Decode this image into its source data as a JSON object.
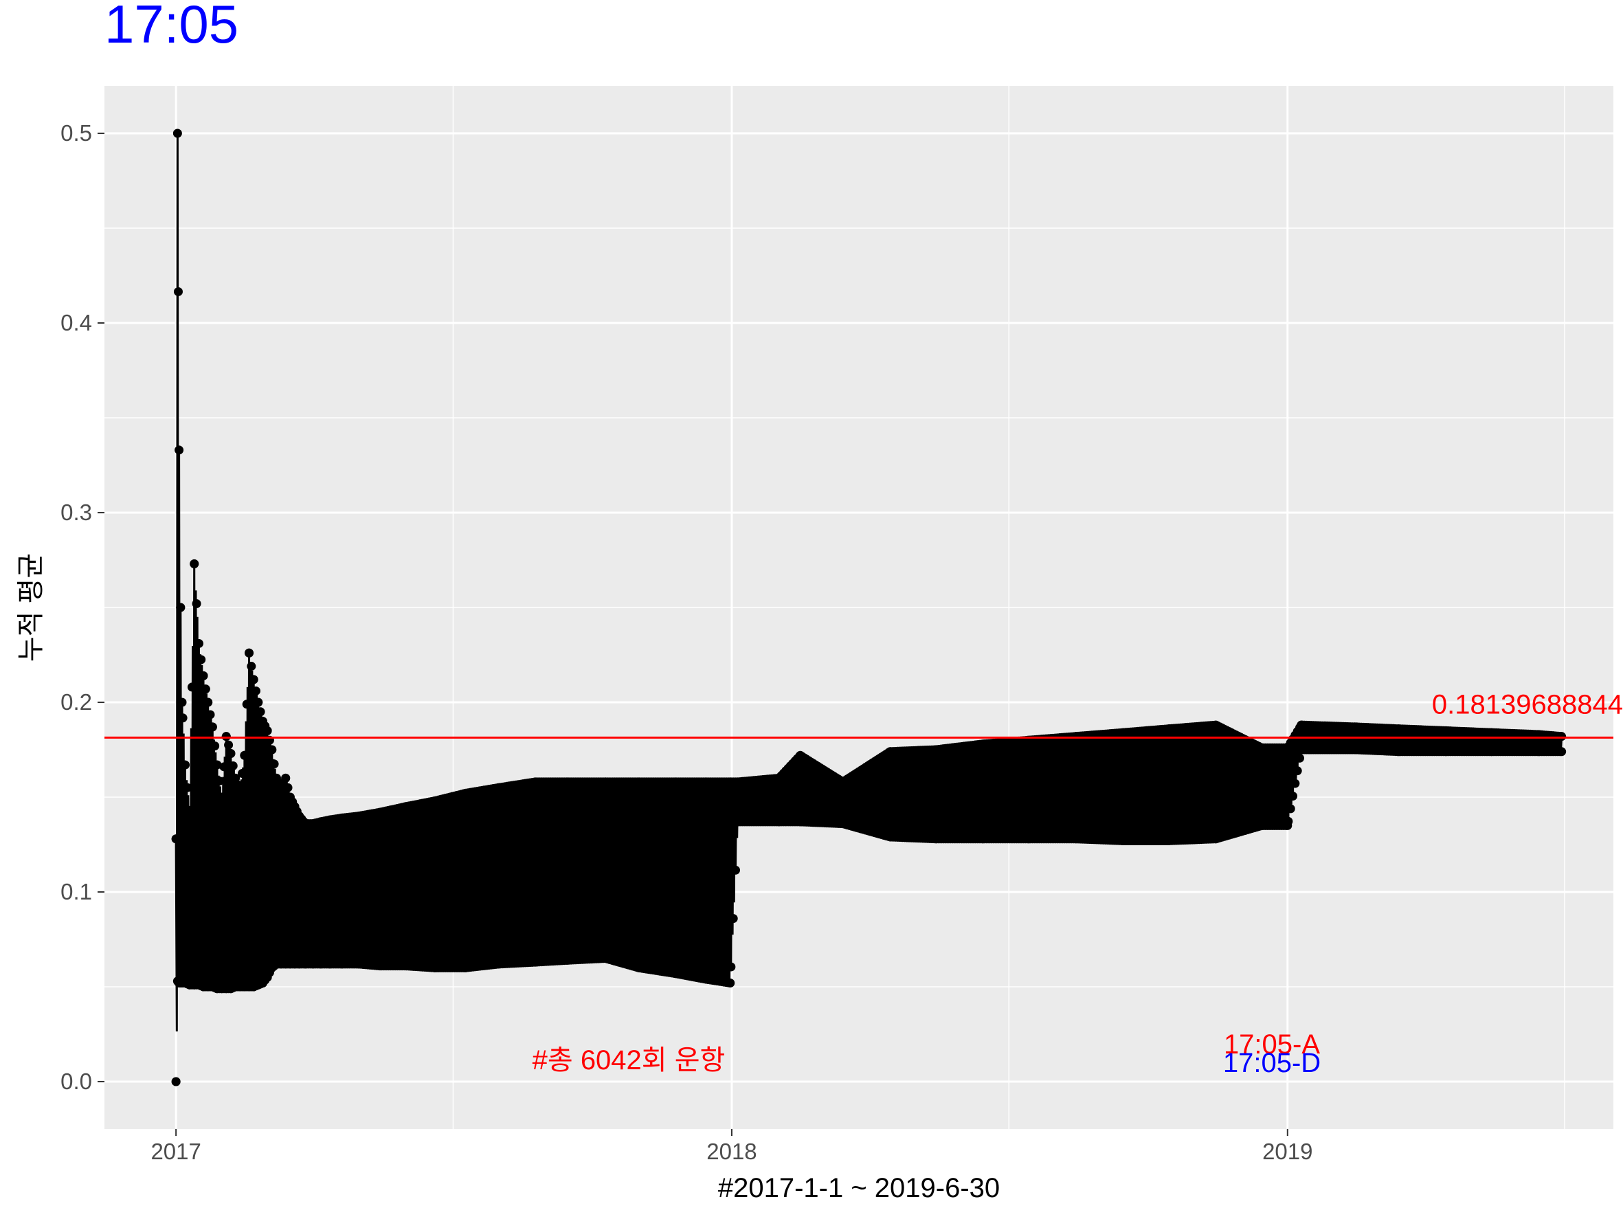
{
  "chart_data": {
    "type": "line",
    "title": "17:05",
    "xlabel": "#2017-1-1 ~ 2019-6-30",
    "ylabel": "누적 평균",
    "xlim": [
      "2016-11-15",
      "2019-08-03"
    ],
    "ylim": [
      -0.025,
      0.525
    ],
    "x_ticks": [
      "2017",
      "2018",
      "2019"
    ],
    "y_ticks": [
      "0.0",
      "0.1",
      "0.2",
      "0.3",
      "0.4",
      "0.5"
    ],
    "grid": true,
    "overall_mean": 0.18139688844,
    "overall_mean_label": "0.18139688844",
    "annotations": {
      "total_runs": "#총 6042회 운항",
      "series_a": "17:05-A",
      "series_d": "17:05-D"
    },
    "colors": {
      "title": "#0000ff",
      "mean_line": "#ff0000",
      "annotation_red": "#ff0000",
      "annotation_blue": "#0000ff",
      "series": "#000000",
      "panel": "#ebebeb",
      "grid": "#ffffff"
    },
    "series": [
      {
        "x": [
          "2017-01-01",
          "2017-01-02",
          "2017-01-03",
          "2017-01-04",
          "2017-01-05",
          "2017-01-07",
          "2017-01-10",
          "2017-01-13",
          "2017-01-16",
          "2017-01-19",
          "2017-01-22",
          "2017-01-25",
          "2017-01-28",
          "2017-01-31",
          "2017-02-03",
          "2017-02-06",
          "2017-02-09",
          "2017-02-12",
          "2017-02-15",
          "2017-02-18",
          "2017-02-21",
          "2017-02-24",
          "2017-02-27",
          "2017-03-02",
          "2017-03-05",
          "2017-03-08",
          "2017-03-11",
          "2017-03-14",
          "2017-03-17",
          "2017-03-20",
          "2017-03-23",
          "2017-03-27",
          "2017-04-01",
          "2017-04-06",
          "2017-04-12",
          "2017-04-20",
          "2017-05-01",
          "2017-05-15",
          "2017-06-01",
          "2017-06-20",
          "2017-07-10",
          "2017-08-01",
          "2017-08-25",
          "2017-09-15",
          "2017-10-10",
          "2017-11-01",
          "2017-11-25",
          "2017-12-15",
          "2017-12-31",
          "2018-01-05",
          "2018-02-01",
          "2018-02-15",
          "2018-03-15",
          "2018-04-15",
          "2018-05-15",
          "2018-06-15",
          "2018-07-15",
          "2018-08-15",
          "2018-09-15",
          "2018-10-15",
          "2018-11-15",
          "2018-12-15",
          "2019-01-01",
          "2019-01-10",
          "2019-02-15",
          "2019-03-15",
          "2019-04-15",
          "2019-05-15",
          "2019-06-15",
          "2019-06-30"
        ],
        "high": [
          0.128,
          0.5,
          0.333,
          0.25,
          0.2,
          0.167,
          0.143,
          0.273,
          0.231,
          0.214,
          0.2,
          0.187,
          0.167,
          0.15,
          0.182,
          0.173,
          0.16,
          0.153,
          0.172,
          0.226,
          0.212,
          0.2,
          0.19,
          0.185,
          0.175,
          0.16,
          0.155,
          0.16,
          0.15,
          0.145,
          0.14,
          0.136,
          0.136,
          0.137,
          0.138,
          0.139,
          0.14,
          0.142,
          0.145,
          0.148,
          0.152,
          0.155,
          0.158,
          0.158,
          0.158,
          0.158,
          0.158,
          0.158,
          0.158,
          0.158,
          0.16,
          0.172,
          0.158,
          0.174,
          0.175,
          0.178,
          0.18,
          0.182,
          0.184,
          0.186,
          0.188,
          0.176,
          0.176,
          0.188,
          0.187,
          0.186,
          0.185,
          0.184,
          0.183,
          0.182
        ],
        "low": [
          0.0,
          0.053,
          0.052,
          0.052,
          0.052,
          0.052,
          0.051,
          0.051,
          0.051,
          0.05,
          0.05,
          0.05,
          0.049,
          0.049,
          0.049,
          0.049,
          0.05,
          0.05,
          0.05,
          0.05,
          0.05,
          0.051,
          0.052,
          0.055,
          0.06,
          0.062,
          0.062,
          0.062,
          0.062,
          0.062,
          0.062,
          0.062,
          0.062,
          0.062,
          0.062,
          0.062,
          0.062,
          0.061,
          0.061,
          0.06,
          0.06,
          0.062,
          0.063,
          0.064,
          0.065,
          0.06,
          0.057,
          0.054,
          0.052,
          0.137,
          0.137,
          0.137,
          0.136,
          0.129,
          0.128,
          0.128,
          0.128,
          0.128,
          0.127,
          0.127,
          0.128,
          0.135,
          0.135,
          0.175,
          0.175,
          0.174,
          0.174,
          0.174,
          0.174,
          0.174
        ]
      }
    ]
  }
}
